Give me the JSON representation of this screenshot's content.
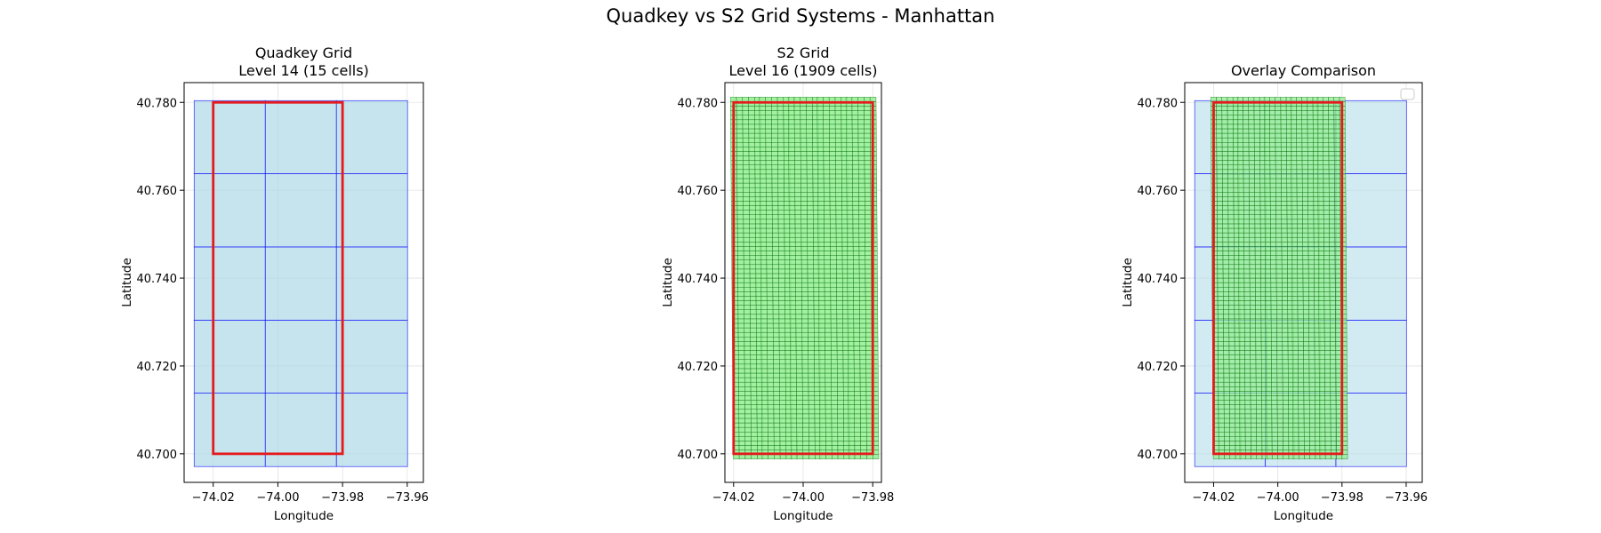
{
  "figure": {
    "title": "Quadkey vs S2 Grid Systems - Manhattan"
  },
  "colors": {
    "quadkey_fill": "#add8e6",
    "quadkey_edge": "#0000ff",
    "s2_fill": "#90ee90",
    "s2_edge": "#006400",
    "bbox": "#e41a1c",
    "grid": "#b0b0b0"
  },
  "chart_data": [
    {
      "type": "map-grid",
      "title": "Quadkey Grid\nLevel 14 (15 cells)",
      "xlabel": "Longitude",
      "ylabel": "Latitude",
      "xlim": [
        -74.029,
        -73.955
      ],
      "ylim": [
        40.6935,
        40.7845
      ],
      "xticks": [
        -74.02,
        -74.0,
        -73.98,
        -73.96
      ],
      "xtick_labels": [
        "−74.02",
        "−74.00",
        "−73.98",
        "−73.96"
      ],
      "yticks": [
        40.7,
        40.72,
        40.74,
        40.76,
        40.78
      ],
      "ytick_labels": [
        "40.700",
        "40.720",
        "40.740",
        "40.760",
        "40.780"
      ],
      "grid": true,
      "bbox": {
        "lon": [
          -74.02,
          -73.98
        ],
        "lat": [
          40.7,
          40.78
        ]
      },
      "quadkey_cells": {
        "level": 14,
        "count": 15,
        "lon_edges": [
          -74.0259,
          -74.0039,
          -73.9819,
          -73.9599
        ],
        "lat_edges": [
          40.6971,
          40.7138,
          40.7304,
          40.7471,
          40.7638,
          40.7804
        ]
      }
    },
    {
      "type": "map-grid",
      "title": "S2 Grid\nLevel 16 (1909 cells)",
      "xlabel": "Longitude",
      "ylabel": "Latitude",
      "xlim": [
        -74.0225,
        -73.9775
      ],
      "ylim": [
        40.6935,
        40.7845
      ],
      "xticks": [
        -74.02,
        -74.0,
        -73.98
      ],
      "xtick_labels": [
        "−74.02",
        "−74.00",
        "−73.98"
      ],
      "yticks": [
        40.7,
        40.72,
        40.74,
        40.76,
        40.78
      ],
      "ytick_labels": [
        "40.700",
        "40.720",
        "40.740",
        "40.760",
        "40.780"
      ],
      "grid": true,
      "bbox": {
        "lon": [
          -74.02,
          -73.98
        ],
        "lat": [
          40.7,
          40.78
        ]
      },
      "s2_cells": {
        "level": 16,
        "count": 1909,
        "lon_range": [
          -74.0205,
          -73.979
        ],
        "lat_range": [
          40.6988,
          40.7812
        ]
      }
    },
    {
      "type": "map-grid",
      "title": "Overlay Comparison",
      "xlabel": "Longitude",
      "ylabel": "Latitude",
      "xlim": [
        -74.029,
        -73.955
      ],
      "ylim": [
        40.6935,
        40.7845
      ],
      "xticks": [
        -74.02,
        -74.0,
        -73.98,
        -73.96
      ],
      "xtick_labels": [
        "−74.02",
        "−74.00",
        "−73.98",
        "−73.96"
      ],
      "yticks": [
        40.7,
        40.72,
        40.74,
        40.76,
        40.78
      ],
      "ytick_labels": [
        "40.700",
        "40.720",
        "40.740",
        "40.760",
        "40.780"
      ],
      "grid": true,
      "legend": "top-right",
      "bbox": {
        "lon": [
          -74.02,
          -73.98
        ],
        "lat": [
          40.7,
          40.78
        ]
      },
      "quadkey_cells": {
        "level": 14,
        "count": 15,
        "lon_edges": [
          -74.0259,
          -74.0039,
          -73.9819,
          -73.9599
        ],
        "lat_edges": [
          40.6971,
          40.7138,
          40.7304,
          40.7471,
          40.7638,
          40.7804
        ]
      },
      "s2_cells": {
        "level": 16,
        "count": 1909,
        "lon_range": [
          -74.0205,
          -73.979
        ],
        "lat_range": [
          40.6988,
          40.7812
        ]
      }
    }
  ]
}
